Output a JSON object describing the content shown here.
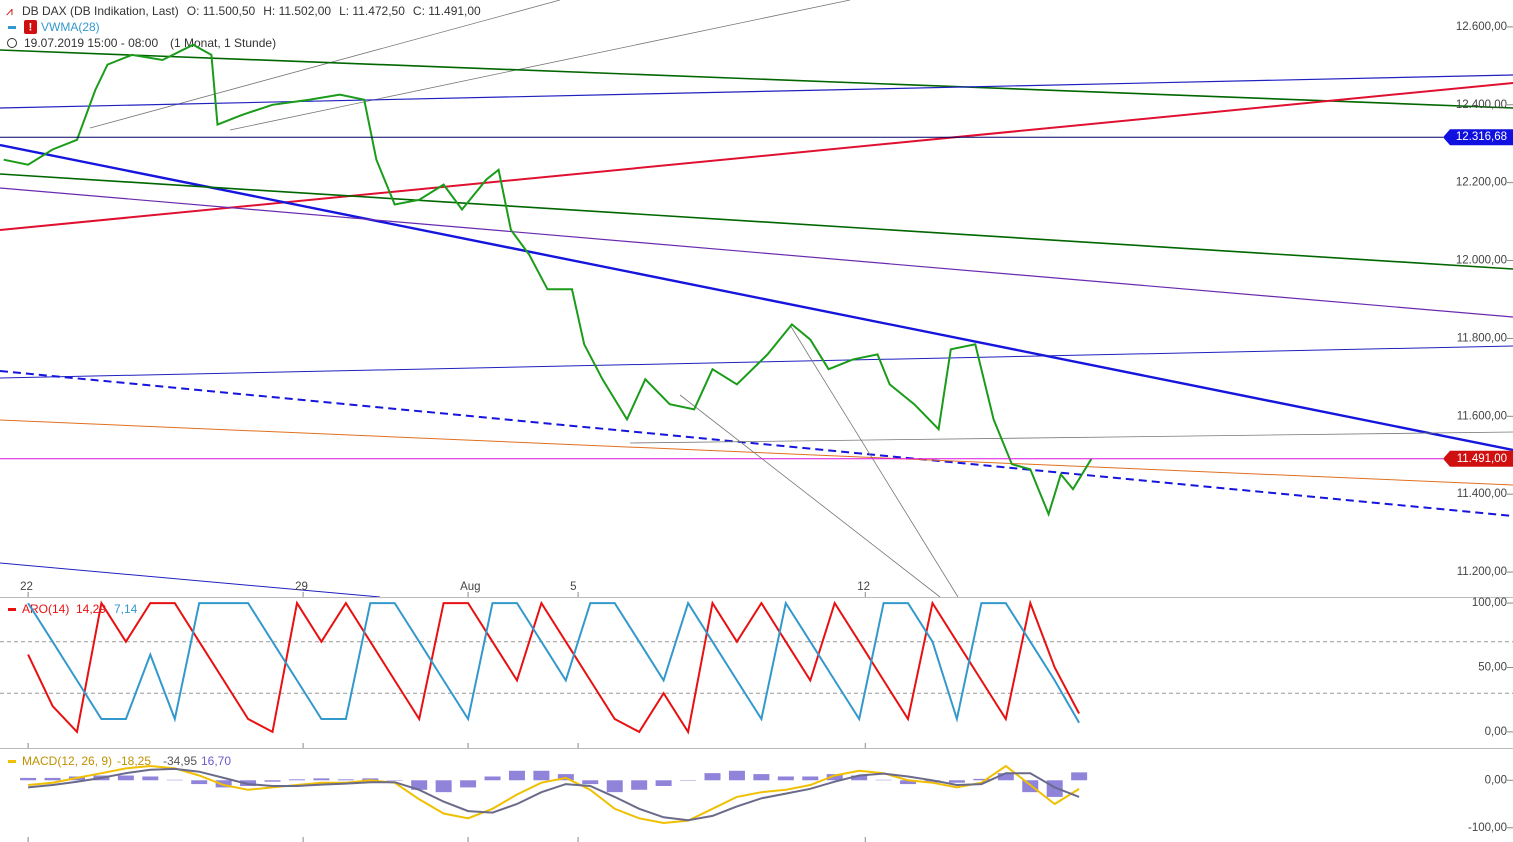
{
  "chart_data": [
    {
      "type": "line",
      "title": "DB DAX (DB Indikation, Last)",
      "ohlc": [
        "O: 11.500,50",
        "H: 11.502,00",
        "L: 11.472,50",
        "C: 11.491,00"
      ],
      "indicator": "VWMA(28)",
      "period": "19.07.2019 15:00 - 08:00",
      "interval": "(1 Monat, 1 Stunde)",
      "x": [
        -4,
        0,
        4,
        8,
        11,
        13,
        17,
        22,
        27,
        30,
        31,
        35,
        40,
        46,
        51,
        55,
        57,
        60,
        64,
        68,
        71,
        75,
        77,
        79,
        82,
        85,
        89,
        91,
        94,
        98,
        101,
        105,
        109,
        112,
        116,
        121,
        125,
        128,
        131,
        135,
        139,
        141,
        145,
        149,
        151,
        155,
        158,
        161,
        164,
        167,
        169,
        171,
        174
      ],
      "series": [
        {
          "color": "#1a9c1a",
          "values": [
            12259,
            12246,
            12285,
            12310,
            12438,
            12503,
            12528,
            12515,
            12554,
            12528,
            12349,
            12374,
            12400,
            12413,
            12426,
            12413,
            12259,
            12144,
            12156,
            12195,
            12131,
            12208,
            12233,
            12079,
            12015,
            11926,
            11926,
            11785,
            11695,
            11592,
            11695,
            11631,
            11618,
            11721,
            11682,
            11759,
            11836,
            11797,
            11721,
            11746,
            11759,
            11682,
            11631,
            11567,
            11772,
            11785,
            11592,
            11477,
            11464,
            11349,
            11451,
            11413,
            11491
          ]
        }
      ],
      "xlim": [
        -4.6,
        243
      ],
      "xticks": [
        {
          "value": 0,
          "label": "22"
        },
        {
          "value": 45,
          "label": "29"
        },
        {
          "value": 72,
          "label": "Aug"
        },
        {
          "value": 90,
          "label": "5"
        },
        {
          "value": 137,
          "label": "12"
        }
      ],
      "ylim": [
        11136,
        12669
      ],
      "yticks": [
        {
          "value": 12600,
          "label": "12.600,00"
        },
        {
          "value": 12400,
          "label": "12.400,00"
        },
        {
          "value": 12200,
          "label": "12.200,00"
        },
        {
          "value": 12000,
          "label": "12.000,00"
        },
        {
          "value": 11800,
          "label": "11.800,00"
        },
        {
          "value": 11600,
          "label": "11.600,00"
        },
        {
          "value": 11400,
          "label": "11.400,00"
        },
        {
          "value": 11200,
          "label": "11.200,00"
        }
      ],
      "price_lines": [
        {
          "value": 12316.68,
          "label": "12.316,68",
          "color": "#1010e0",
          "line_color": "#000066"
        },
        {
          "value": 11491,
          "label": "11.491,00",
          "color": "#d01010",
          "line_color": "#e010e0"
        }
      ]
    },
    {
      "type": "line",
      "legend": "ARO(14)",
      "legend_values": [
        "14,29",
        "7,14"
      ],
      "x": [
        0,
        4,
        8,
        12,
        16,
        20,
        24,
        28,
        32,
        36,
        40,
        44,
        48,
        52,
        56,
        60,
        64,
        68,
        72,
        76,
        80,
        84,
        88,
        92,
        96,
        100,
        104,
        108,
        112,
        116,
        120,
        124,
        128,
        132,
        136,
        140,
        144,
        148,
        152,
        156,
        160,
        164,
        168,
        172
      ],
      "series": [
        {
          "color": "#e81010",
          "values": [
            60,
            20,
            0,
            100,
            70,
            100,
            100,
            70,
            40,
            10,
            0,
            100,
            70,
            100,
            70,
            40,
            10,
            100,
            100,
            70,
            40,
            100,
            70,
            40,
            10,
            0,
            30,
            0,
            100,
            70,
            100,
            70,
            40,
            100,
            70,
            40,
            10,
            100,
            70,
            40,
            10,
            100,
            50,
            14.29
          ]
        },
        {
          "color": "#3399cc",
          "values": [
            100,
            70,
            40,
            10,
            10,
            60,
            10,
            100,
            100,
            100,
            70,
            40,
            10,
            10,
            100,
            100,
            70,
            40,
            10,
            100,
            100,
            70,
            40,
            100,
            100,
            70,
            40,
            100,
            70,
            40,
            10,
            100,
            70,
            40,
            10,
            100,
            100,
            70,
            10,
            100,
            100,
            70,
            40,
            7.14
          ]
        }
      ],
      "xlim": [
        -4.6,
        243
      ],
      "ylim": [
        -12.5,
        104.7
      ],
      "yticks": [
        {
          "value": 100,
          "label": "100,00"
        },
        {
          "value": 50,
          "label": "50,00"
        },
        {
          "value": 0,
          "label": "0,00"
        }
      ],
      "levels": [
        70,
        30
      ]
    },
    {
      "type": "line",
      "legend": "MACD(12, 26, 9)",
      "legend_values": [
        "-18,25",
        "-34,95",
        "16,70"
      ],
      "x": [
        0,
        4,
        8,
        12,
        16,
        20,
        24,
        28,
        32,
        36,
        40,
        44,
        48,
        52,
        56,
        60,
        64,
        68,
        72,
        76,
        80,
        84,
        88,
        92,
        96,
        100,
        104,
        108,
        112,
        116,
        120,
        124,
        128,
        132,
        136,
        140,
        144,
        148,
        152,
        156,
        160,
        164,
        168,
        172
      ],
      "series": [
        {
          "type": "bar",
          "color": "#6a5acd",
          "values": [
            5,
            5,
            8,
            10,
            10,
            8,
            1,
            -8,
            -15,
            -12,
            -3,
            2,
            4,
            2,
            4,
            -1,
            -20,
            -25,
            -15,
            8,
            20,
            20,
            13,
            -8,
            -25,
            -20,
            -12,
            -1,
            15,
            20,
            13,
            8,
            8,
            13,
            10,
            1,
            -8,
            -5,
            -5,
            3,
            15,
            -25,
            -35,
            16.7
          ]
        },
        {
          "color": "#f0c000",
          "values": [
            -10,
            -5,
            5,
            15,
            25,
            30,
            25,
            10,
            -10,
            -20,
            -15,
            -10,
            -5,
            -5,
            0,
            -5,
            -40,
            -70,
            -80,
            -60,
            -30,
            -5,
            5,
            -20,
            -60,
            -80,
            -90,
            -85,
            -60,
            -35,
            -25,
            -20,
            -10,
            10,
            20,
            15,
            0,
            -5,
            -15,
            -5,
            30,
            -10,
            -50,
            -18.25
          ]
        },
        {
          "color": "#6a6a8a",
          "values": [
            -15,
            -10,
            -3,
            5,
            15,
            22,
            24,
            18,
            5,
            -8,
            -12,
            -12,
            -9,
            -7,
            -4,
            -4,
            -20,
            -45,
            -65,
            -68,
            -50,
            -25,
            -8,
            -12,
            -35,
            -60,
            -78,
            -84,
            -75,
            -55,
            -38,
            -28,
            -18,
            -3,
            10,
            14,
            8,
            0,
            -10,
            -8,
            15,
            15,
            -15,
            -34.95
          ]
        }
      ],
      "xlim": [
        -4.6,
        243
      ],
      "ylim": [
        -130,
        68
      ],
      "yticks": [
        {
          "value": 0,
          "label": "0,00"
        },
        {
          "value": -100,
          "label": "-100,00"
        }
      ]
    }
  ]
}
